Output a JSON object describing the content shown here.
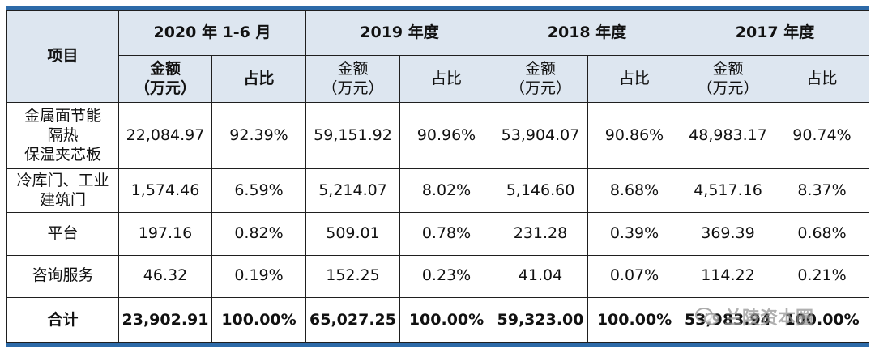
{
  "header": {
    "item_label": "项目",
    "periods": [
      "2020 年 1-6 月",
      "2019 年度",
      "2018 年度",
      "2017 年度"
    ],
    "amount_label": "金额\n（万元）",
    "ratio_label": "占比"
  },
  "rows": [
    {
      "name": "金属面节能\n隔热\n保温夹芯板",
      "cells": [
        "22,084.97",
        "92.39%",
        "59,151.92",
        "90.96%",
        "53,904.07",
        "90.86%",
        "48,983.17",
        "90.74%"
      ]
    },
    {
      "name": "冷库门、工业\n建筑门",
      "cells": [
        "1,574.46",
        "6.59%",
        "5,214.07",
        "8.02%",
        "5,146.60",
        "8.68%",
        "4,517.16",
        "8.37%"
      ]
    },
    {
      "name": "平台",
      "cells": [
        "197.16",
        "0.82%",
        "509.01",
        "0.78%",
        "231.28",
        "0.39%",
        "369.39",
        "0.68%"
      ]
    },
    {
      "name": "咨询服务",
      "cells": [
        "46.32",
        "0.19%",
        "152.25",
        "0.23%",
        "41.04",
        "0.07%",
        "114.22",
        "0.21%"
      ]
    }
  ],
  "total": {
    "name": "合计",
    "cells": [
      "23,902.91",
      "100.00%",
      "65,027.25",
      "100.00%",
      "59,323.00",
      "100.00%",
      "53,983.94",
      "100.00%"
    ]
  },
  "watermark": {
    "text": "兰陵资本圈",
    "icon": "wechat-icon"
  }
}
